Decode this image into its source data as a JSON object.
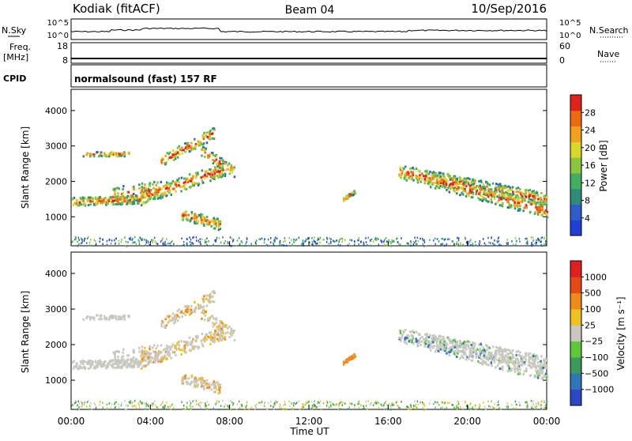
{
  "header": {
    "station": "Kodiak (fitACF)",
    "beam": "Beam 04",
    "date": "10/Sep/2016"
  },
  "strips": {
    "nsky_label": "N.Sky",
    "nsearch_label": "N.Search",
    "freq_label": "Freq.",
    "freq_unit": "[MHz]",
    "nave_label": "Nave",
    "cpid_label": "CPID",
    "cpid_text": "normalsound (fast) 157 RF",
    "noise_ticks_left": [
      "10^5",
      "10^0"
    ],
    "noise_ticks_right": [
      "10^5",
      "10^0"
    ],
    "freq_ticks": [
      "18",
      "8"
    ],
    "nave_ticks": [
      "60",
      "0"
    ]
  },
  "chart_data": [
    {
      "type": "heatmap",
      "title": "",
      "ylabel": "Slant Range [km]",
      "ylim": [
        180,
        4600
      ],
      "yticks": [
        1000,
        2000,
        3000,
        4000
      ],
      "colorbar": {
        "label": "Power [dB]",
        "ticks": [
          4,
          8,
          12,
          16,
          20,
          24,
          28
        ],
        "range": [
          0,
          32
        ],
        "colors": [
          "#1f3fd6",
          "#2d5dc8",
          "#2f8c7a",
          "#40b060",
          "#8cc63c",
          "#d8d82a",
          "#f2a01e",
          "#ee6a10",
          "#e02318"
        ]
      }
    },
    {
      "type": "heatmap",
      "title": "",
      "ylabel": "Slant Range [km]",
      "xlabel": "Time UT",
      "ylim": [
        180,
        4600
      ],
      "yticks": [
        1000,
        2000,
        3000,
        4000
      ],
      "xticks": [
        "00:00",
        "04:00",
        "08:00",
        "12:00",
        "16:00",
        "20:00",
        "00:00"
      ],
      "xlim": [
        0,
        24
      ],
      "colorbar": {
        "label": "Velocity [m s⁻¹]",
        "ticks": [
          "1000",
          "500",
          "100",
          "25",
          "−25",
          "−100",
          "−500",
          "−1000"
        ],
        "colors": [
          "#2848c8",
          "#2f76b8",
          "#3a9a5a",
          "#5ec83a",
          "#c8c8c0",
          "#f0c020",
          "#f08a18",
          "#e84818",
          "#e02020"
        ]
      }
    }
  ]
}
